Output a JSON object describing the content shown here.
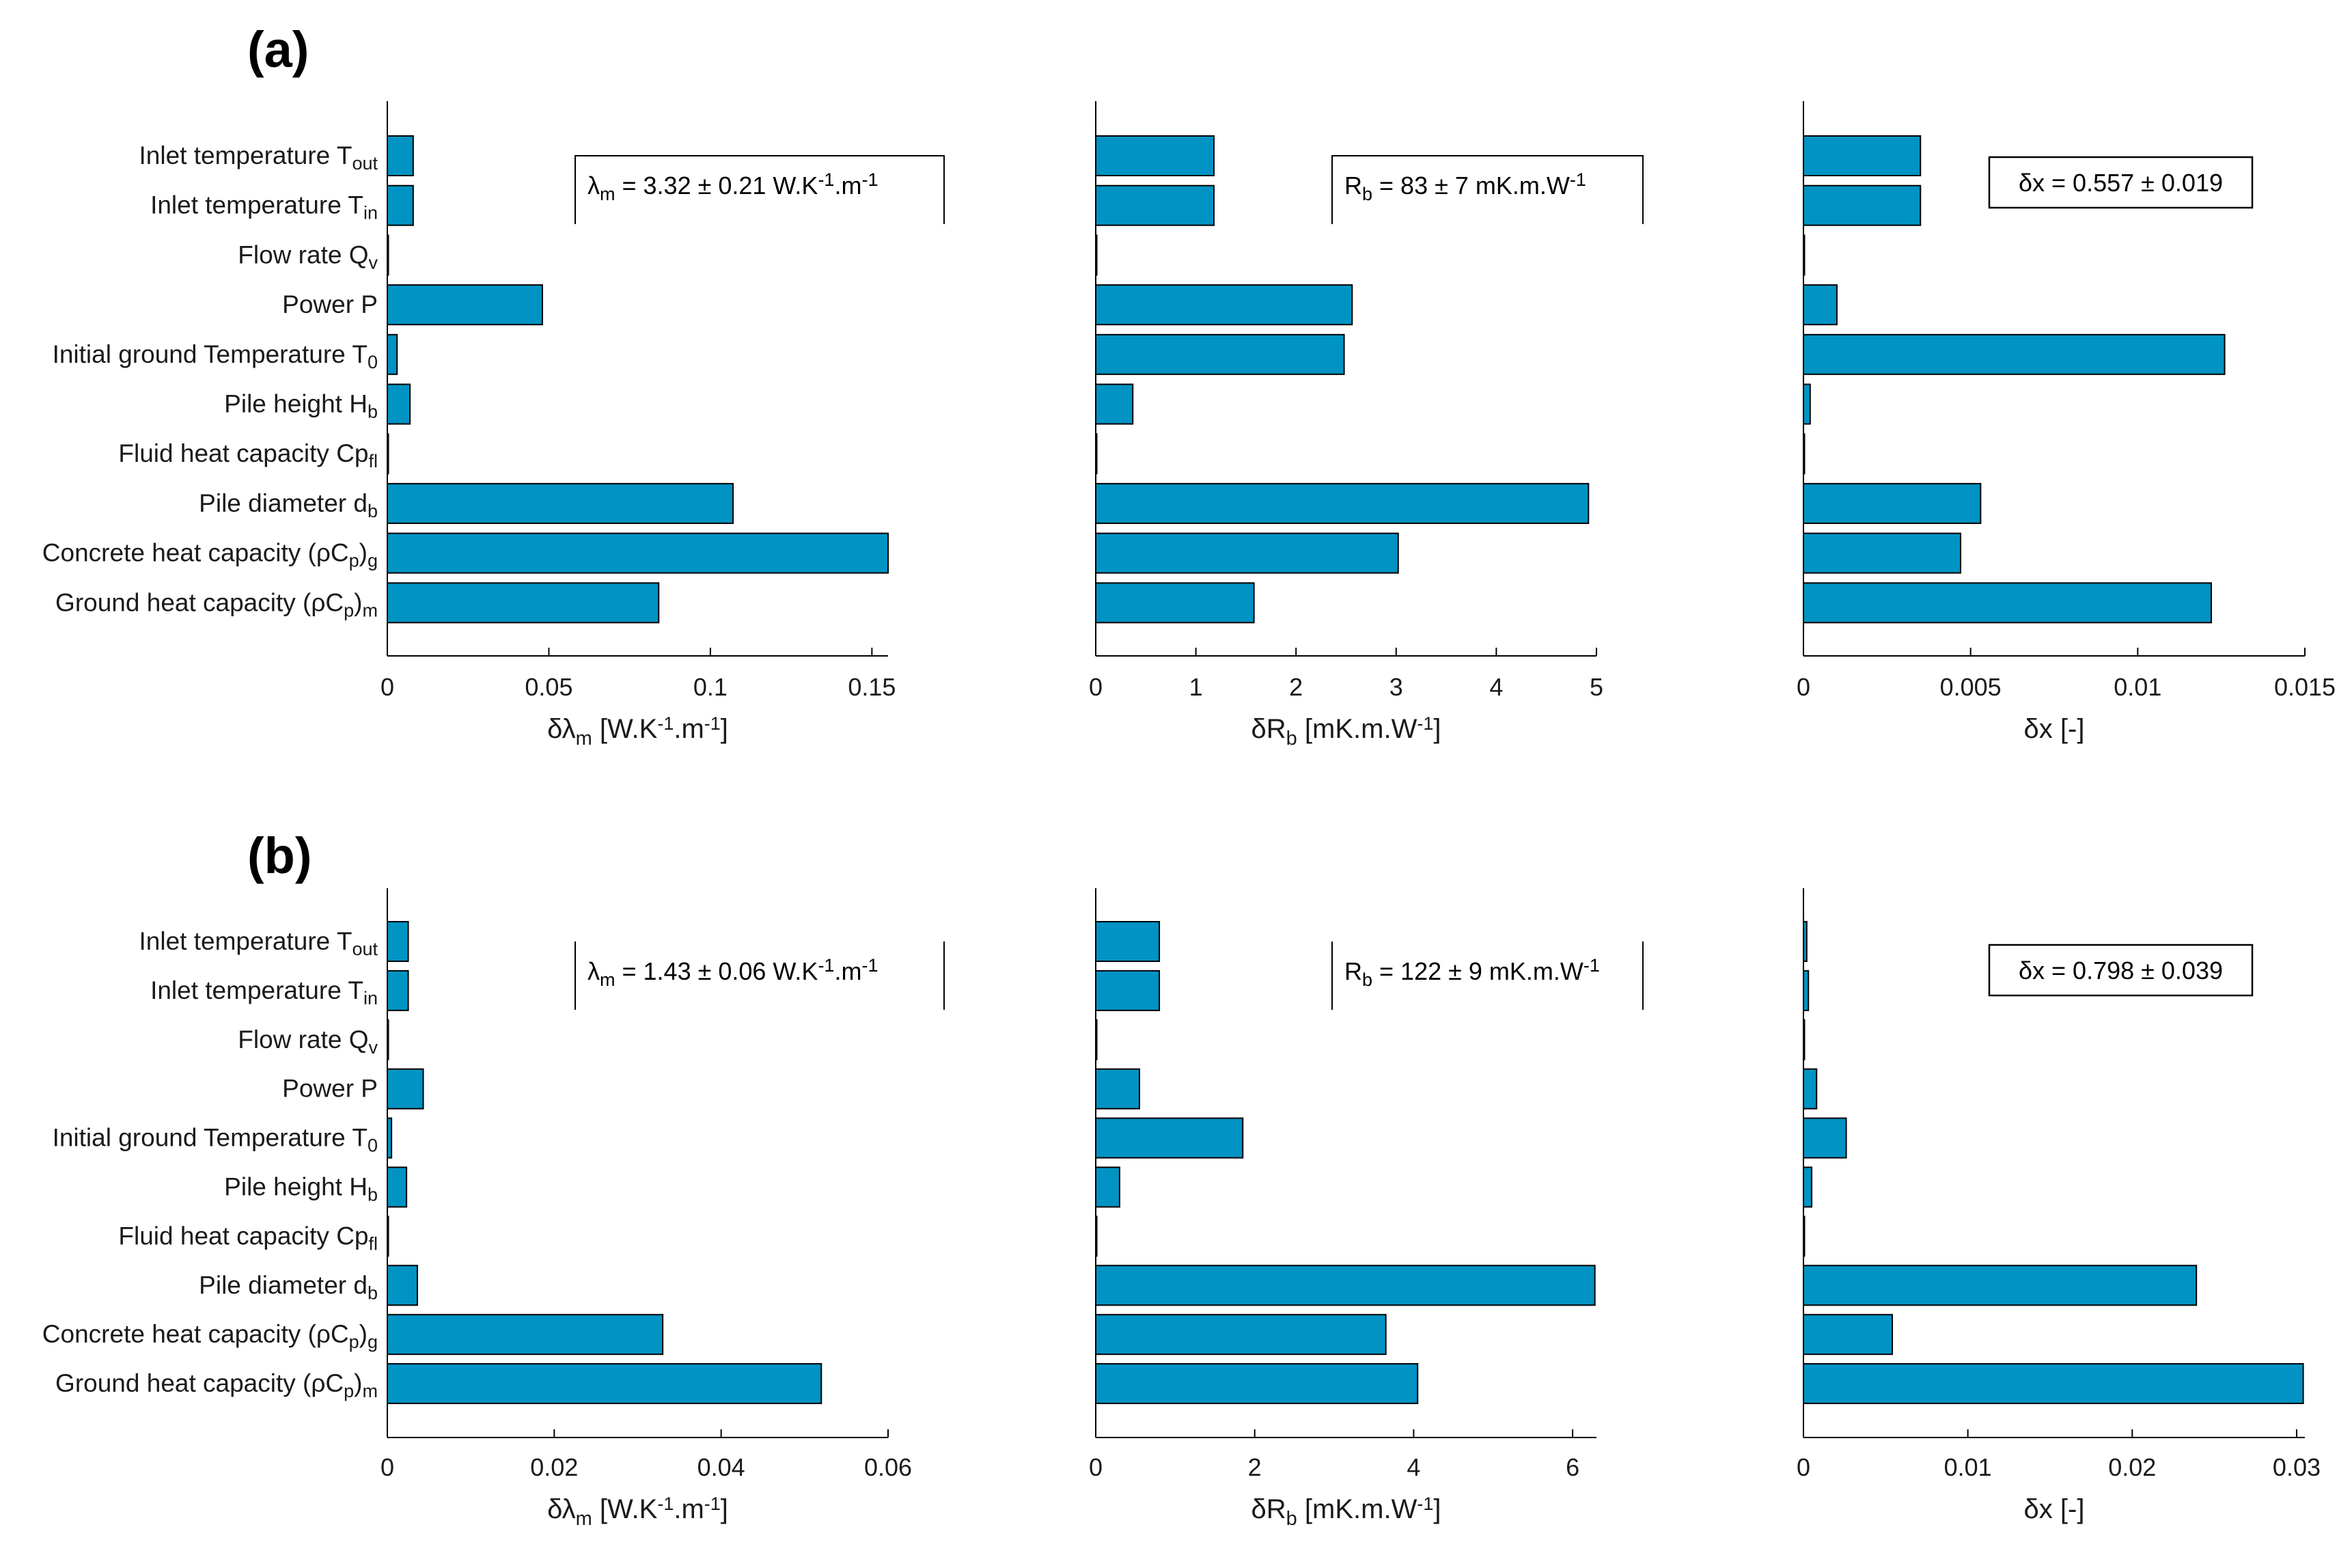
{
  "colors": {
    "bar": "#0093c4",
    "edge": "#000000"
  },
  "categories": [
    {
      "main": "Inlet temperature T",
      "sub": "out"
    },
    {
      "main": "Inlet temperature T",
      "sub": "in"
    },
    {
      "main": "Flow rate Q",
      "sub": "v"
    },
    {
      "main": "Power P",
      "sub": ""
    },
    {
      "main": "Initial ground Temperature T",
      "sub": "0"
    },
    {
      "main": "Pile height H",
      "sub": "b"
    },
    {
      "main": "Fluid heat capacity Cp",
      "sub": "fl"
    },
    {
      "main": "Pile diameter d",
      "sub": "b"
    },
    {
      "main": "Concrete heat capacity (ρC",
      "sub": "p",
      "tail": ")",
      "sub2": "g"
    },
    {
      "main": "Ground heat capacity (ρC",
      "sub": "p",
      "tail": ")",
      "sub2": "m"
    }
  ],
  "chart_data": [
    {
      "panel": "(a)",
      "type": "bar",
      "orientation": "horizontal",
      "subplots": [
        {
          "id": "lambda",
          "values": [
            0.008,
            0.008,
            0.0,
            0.048,
            0.003,
            0.007,
            0.0,
            0.107,
            0.155,
            0.084
          ],
          "xlim": [
            0,
            0.155
          ],
          "xticks": [
            0,
            0.05,
            0.1,
            0.15
          ],
          "xtick_labels": [
            "0",
            "0.05",
            "0.1",
            "0.15"
          ],
          "xlabel": {
            "main": "δλ",
            "sub": "m",
            "rest": " [W.K",
            "sup1": "-1",
            "mid": ".m",
            "sup2": "-1",
            "end": "]"
          },
          "annotation": {
            "lead": "λ",
            "sub": "m",
            "text": " = 3.32 ± 0.21 W.K",
            "sup1": "-1",
            "mid": ".m",
            "sup2": "-1"
          }
        },
        {
          "id": "rb",
          "values": [
            1.18,
            1.18,
            0.0,
            2.56,
            2.48,
            0.37,
            0.0,
            4.92,
            3.02,
            1.58
          ],
          "xlim": [
            0,
            5
          ],
          "xticks": [
            0,
            1,
            2,
            3,
            4,
            5
          ],
          "xtick_labels": [
            "0",
            "1",
            "2",
            "3",
            "4",
            "5"
          ],
          "xlabel": {
            "main": "δR",
            "sub": "b",
            "rest": " [mK.m.W",
            "sup1": "-1",
            "end": "]"
          },
          "annotation": {
            "lead": "R",
            "sub": "b",
            "text": " = 83 ± 7 mK.m.W",
            "sup1": "-1"
          }
        },
        {
          "id": "x",
          "values": [
            0.0035,
            0.0035,
            0.0,
            0.001,
            0.0126,
            0.0002,
            0.0,
            0.0053,
            0.0047,
            0.0122
          ],
          "xlim": [
            0,
            0.015
          ],
          "xticks": [
            0,
            0.005,
            0.01,
            0.015
          ],
          "xtick_labels": [
            "0",
            "0.005",
            "0.01",
            "0.015"
          ],
          "xlabel": {
            "main": "δx [-]"
          },
          "annotation": {
            "text": "δx = 0.557 ± 0.019"
          }
        }
      ]
    },
    {
      "panel": "(b)",
      "type": "bar",
      "orientation": "horizontal",
      "subplots": [
        {
          "id": "lambda",
          "values": [
            0.0025,
            0.0025,
            0.0,
            0.0043,
            0.0005,
            0.0023,
            0.0,
            0.0036,
            0.033,
            0.052
          ],
          "xlim": [
            0,
            0.06
          ],
          "xticks": [
            0,
            0.02,
            0.04,
            0.06
          ],
          "xtick_labels": [
            "0",
            "0.02",
            "0.04",
            "0.06"
          ],
          "xlabel": {
            "main": "δλ",
            "sub": "m",
            "rest": " [W.K",
            "sup1": "-1",
            "mid": ".m",
            "sup2": "-1",
            "end": "]"
          },
          "annotation": {
            "lead": "λ",
            "sub": "m",
            "text": " = 1.43 ± 0.06 W.K",
            "sup1": "-1",
            "mid": ".m",
            "sup2": "-1"
          }
        },
        {
          "id": "rb",
          "values": [
            0.8,
            0.8,
            0.0,
            0.55,
            1.85,
            0.3,
            0.0,
            6.28,
            3.65,
            4.05
          ],
          "xlim": [
            0,
            6.3
          ],
          "xticks": [
            0,
            2,
            4,
            6
          ],
          "xtick_labels": [
            "0",
            "2",
            "4",
            "6"
          ],
          "xlabel": {
            "main": "δR",
            "sub": "b",
            "rest": " [mK.m.W",
            "sup1": "-1",
            "end": "]"
          },
          "annotation": {
            "lead": "R",
            "sub": "b",
            "text": " = 122 ± 9 mK.m.W",
            "sup1": "-1"
          }
        },
        {
          "id": "x",
          "values": [
            0.0002,
            0.0003,
            0.0,
            0.0008,
            0.0026,
            0.0005,
            0.0,
            0.0239,
            0.0054,
            0.0304
          ],
          "xlim": [
            0,
            0.0305
          ],
          "xticks": [
            0,
            0.01,
            0.02,
            0.03
          ],
          "xtick_labels": [
            "0",
            "0.01",
            "0.02",
            "0.03"
          ],
          "xlabel": {
            "main": "δx [-]"
          },
          "annotation": {
            "text": "δx = 0.798 ± 0.039"
          }
        }
      ]
    }
  ]
}
